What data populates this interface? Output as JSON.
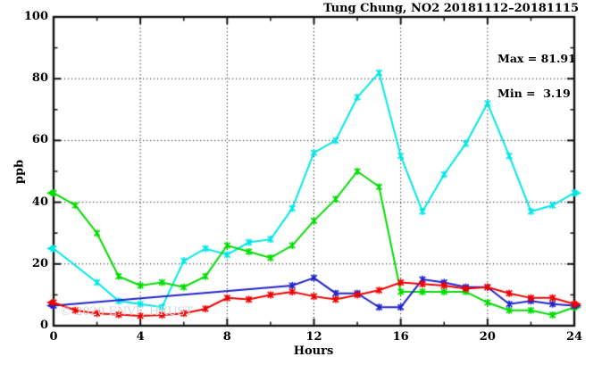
{
  "title": "Tung Chung, NO2 20181112–20181115",
  "annotation": {
    "max_label": "Max = 81.91",
    "min_label": "Min =  3.19"
  },
  "watermark": "© 2020 ENVF, HKUST",
  "chart_data": {
    "type": "line",
    "title": "Tung Chung, NO2 20181112–20181115",
    "xlabel": "Hours",
    "ylabel": "ppb",
    "xlim": [
      0,
      24
    ],
    "ylim": [
      0,
      100
    ],
    "x_ticks": [
      0,
      4,
      8,
      12,
      16,
      20,
      24
    ],
    "x_minor_ticks": [
      2,
      6,
      10,
      14,
      18,
      22
    ],
    "y_ticks": [
      0,
      20,
      40,
      60,
      80,
      100
    ],
    "y_minor_ticks": [
      10,
      30,
      50,
      70,
      90
    ],
    "x_gridlines": [
      4,
      8,
      12,
      16,
      20
    ],
    "y_gridlines": [
      20,
      40,
      60,
      80
    ],
    "grid": true,
    "legend_position": "none",
    "max_value": 81.91,
    "min_value": 3.19,
    "x": [
      0,
      1,
      2,
      3,
      4,
      5,
      6,
      7,
      8,
      9,
      10,
      11,
      12,
      13,
      14,
      15,
      16,
      17,
      18,
      19,
      20,
      21,
      22,
      23,
      24
    ],
    "series": [
      {
        "name": "series-cyan",
        "color": "#00E6E6",
        "values": [
          25,
          null,
          14,
          8,
          7,
          6,
          21,
          25,
          23,
          27,
          28,
          38,
          56,
          60,
          74,
          81.91,
          55,
          37,
          49,
          59,
          72,
          55,
          37,
          39,
          43
        ]
      },
      {
        "name": "series-green",
        "color": "#00DC00",
        "values": [
          43,
          39,
          30,
          16,
          13,
          14,
          12.5,
          16,
          26,
          24,
          22,
          26,
          34,
          41,
          50,
          45,
          11,
          11,
          11,
          11,
          7.5,
          5,
          5,
          3.5,
          6
        ]
      },
      {
        "name": "series-blue",
        "color": "#2222CC",
        "values": [
          6.5,
          null,
          null,
          null,
          null,
          null,
          null,
          null,
          null,
          null,
          null,
          13,
          15.5,
          10.5,
          10.5,
          6,
          6,
          15,
          14,
          12.5,
          12.5,
          7,
          8,
          7,
          6.5
        ]
      },
      {
        "name": "series-red",
        "color": "#EE0000",
        "values": [
          7.5,
          5,
          4,
          3.6,
          3.19,
          3.5,
          4,
          5.5,
          9,
          8.5,
          10,
          11,
          9.5,
          8.5,
          10,
          11.5,
          14,
          13.5,
          13,
          12,
          12.5,
          10.5,
          9,
          9,
          7
        ]
      }
    ]
  }
}
